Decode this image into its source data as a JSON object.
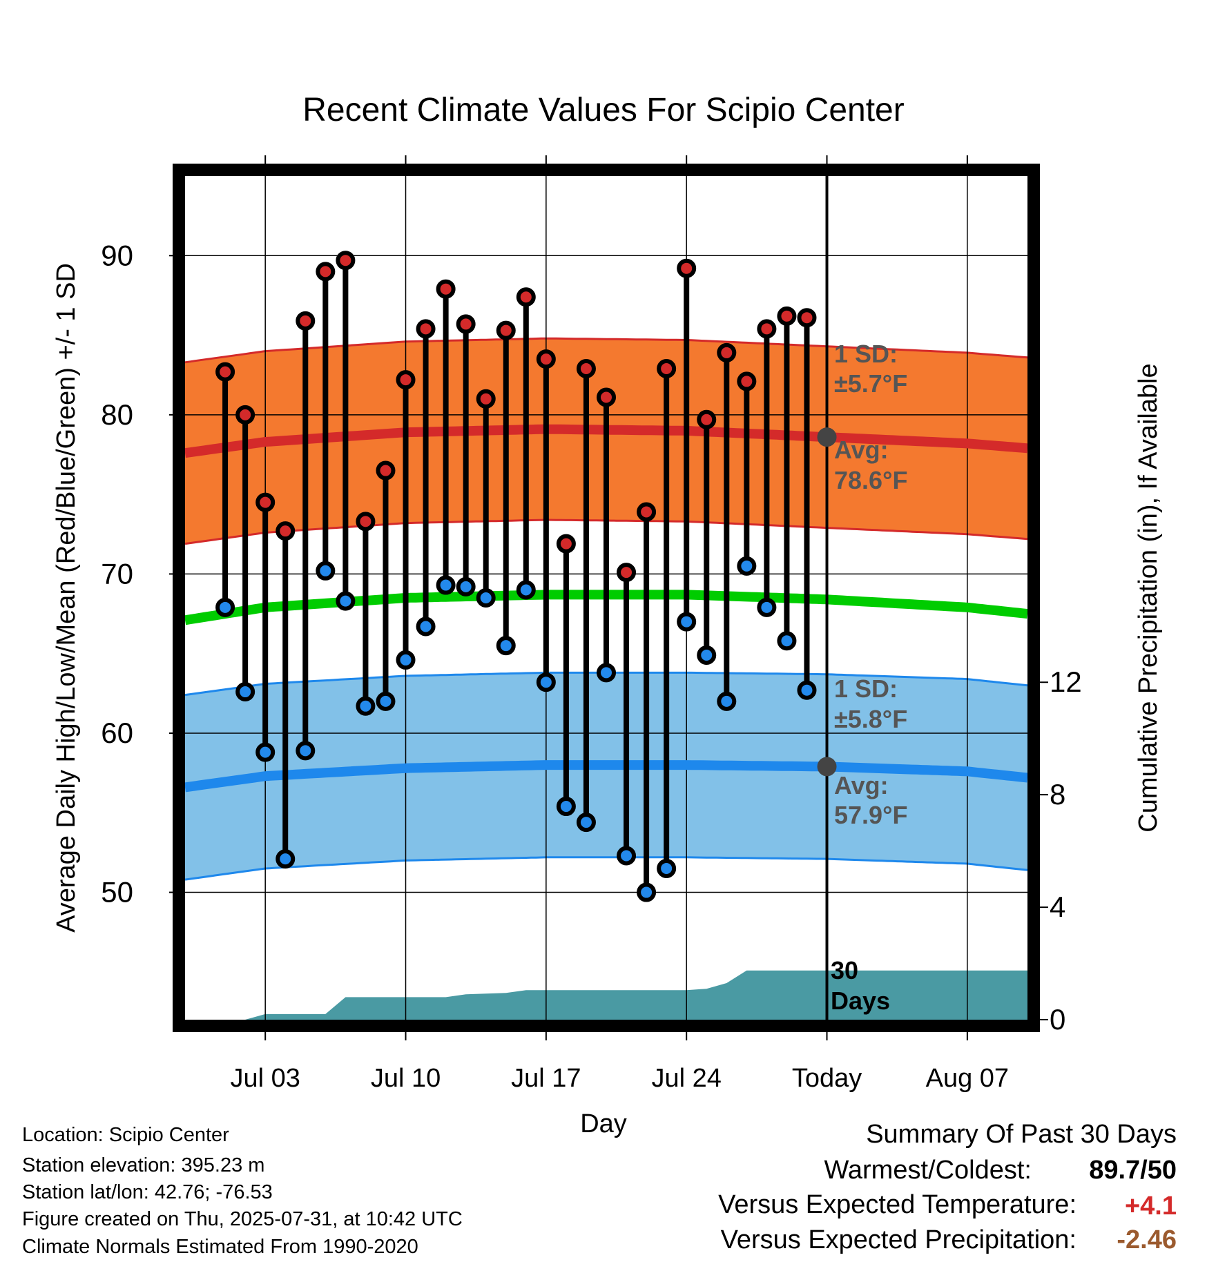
{
  "chart_data": {
    "type": "line",
    "title": "Recent Climate Values For Scipio Center",
    "xlabel": "Day",
    "ylabel": "Average Daily High/Low/Mean (Red/Blue/Green) +/- 1 SD",
    "y2label": "Cumulative Precipitation (in), If Available",
    "ylim": [
      42,
      95
    ],
    "y_ticks": [
      "50",
      "60",
      "70",
      "80",
      "90"
    ],
    "y2lim": [
      0,
      30
    ],
    "y2_ticks": [
      "0",
      "4",
      "8",
      "12"
    ],
    "x_range": [
      "2025-06-29",
      "2025-08-10"
    ],
    "x_ticks": [
      {
        "date": "2025-07-03",
        "label": "Jul 03"
      },
      {
        "date": "2025-07-10",
        "label": "Jul 10"
      },
      {
        "date": "2025-07-17",
        "label": "Jul 17"
      },
      {
        "date": "2025-07-24",
        "label": "Jul 24"
      },
      {
        "date": "2025-07-31",
        "label": "Today"
      },
      {
        "date": "2025-08-07",
        "label": "Aug 07"
      }
    ],
    "grid": true,
    "today_marker": "2025-07-31",
    "period_label": "30 Days",
    "daily": {
      "dates": [
        "2025-07-01",
        "2025-07-02",
        "2025-07-03",
        "2025-07-04",
        "2025-07-05",
        "2025-07-06",
        "2025-07-07",
        "2025-07-08",
        "2025-07-09",
        "2025-07-10",
        "2025-07-11",
        "2025-07-12",
        "2025-07-13",
        "2025-07-14",
        "2025-07-15",
        "2025-07-16",
        "2025-07-17",
        "2025-07-18",
        "2025-07-19",
        "2025-07-20",
        "2025-07-21",
        "2025-07-22",
        "2025-07-23",
        "2025-07-24",
        "2025-07-25",
        "2025-07-26",
        "2025-07-27",
        "2025-07-28",
        "2025-07-29",
        "2025-07-30"
      ],
      "highs": [
        82.7,
        80.0,
        74.5,
        72.7,
        85.9,
        89.0,
        89.7,
        73.3,
        76.5,
        82.2,
        85.4,
        87.9,
        85.7,
        81.0,
        85.3,
        87.4,
        83.5,
        71.9,
        82.9,
        81.1,
        70.1,
        73.9,
        82.9,
        89.2,
        79.7,
        83.9,
        82.1,
        85.4,
        86.2,
        86.1
      ],
      "lows": [
        67.9,
        62.6,
        58.8,
        52.1,
        58.9,
        70.2,
        68.3,
        61.7,
        62.0,
        64.6,
        66.7,
        69.3,
        69.2,
        68.5,
        65.5,
        69.0,
        63.2,
        55.4,
        54.4,
        63.8,
        52.3,
        50.0,
        51.5,
        67.0,
        64.9,
        62.0,
        70.5,
        67.9,
        65.8,
        62.7
      ],
      "high_color": "#d42a2a",
      "low_color": "#2389ec"
    },
    "normals": {
      "dates": [
        "2025-06-29",
        "2025-07-03",
        "2025-07-10",
        "2025-07-17",
        "2025-07-24",
        "2025-07-31",
        "2025-08-07",
        "2025-08-10"
      ],
      "avg_high": [
        77.6,
        78.3,
        78.9,
        79.1,
        79.0,
        78.6,
        78.2,
        77.9
      ],
      "high_sd": 5.7,
      "avg_low": [
        56.6,
        57.3,
        57.8,
        58.0,
        58.0,
        57.9,
        57.6,
        57.2
      ],
      "low_sd": 5.8,
      "avg_mean": [
        67.1,
        67.9,
        68.5,
        68.7,
        68.7,
        68.4,
        67.9,
        67.5
      ]
    },
    "precip": {
      "dates": [
        "2025-06-29",
        "2025-07-02",
        "2025-07-03",
        "2025-07-06",
        "2025-07-07",
        "2025-07-12",
        "2025-07-13",
        "2025-07-15",
        "2025-07-16",
        "2025-07-24",
        "2025-07-25",
        "2025-07-26",
        "2025-07-27",
        "2025-08-10"
      ],
      "cumulative": [
        0.0,
        0.0,
        0.2,
        0.2,
        0.8,
        0.8,
        0.9,
        0.95,
        1.05,
        1.05,
        1.1,
        1.3,
        1.75,
        1.75
      ],
      "color": "#4a9aa3"
    },
    "annotations": {
      "high_sd_label": "1 SD:",
      "high_sd_value": "±5.7°F",
      "high_avg_label": "Avg:",
      "high_avg_value": "78.6°F",
      "low_sd_label": "1 SD:",
      "low_sd_value": "±5.8°F",
      "low_avg_label": "Avg:",
      "low_avg_value": "57.9°F"
    },
    "colors": {
      "high_band": "#f4792f",
      "high_band_edge": "#d42a2a",
      "high_avg": "#d42a2a",
      "low_band": "#82c1e8",
      "low_band_edge": "#1e88ec",
      "low_avg": "#1e88ec",
      "mean_line": "#00cc00",
      "annotation_text": "#555555",
      "today_dot": "#444444"
    }
  },
  "footer": {
    "location": "Location: Scipio Center",
    "elevation": "Station elevation: 395.23 m",
    "latlon": "Station lat/lon: 42.76; -76.53",
    "created": "Figure created on Thu, 2025-07-31, at 10:42 UTC",
    "normals": "Climate Normals Estimated From 1990-2020"
  },
  "summary": {
    "title": "Summary Of Past 30 Days",
    "warmest_label": "Warmest/Coldest:",
    "warmest_value": "89.7/50",
    "temp_label": "Versus Expected Temperature:",
    "temp_value": "+4.1",
    "temp_color": "#d42a2a",
    "precip_label": "Versus Expected Precipitation:",
    "precip_value": "-2.46",
    "precip_color": "#9b5a2e"
  }
}
